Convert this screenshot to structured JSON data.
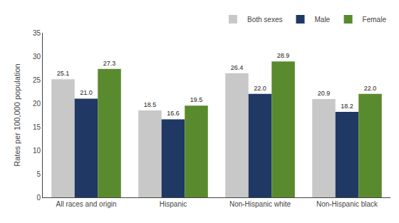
{
  "chart_data": {
    "type": "bar",
    "categories": [
      "All races and origin",
      "Hispanic",
      "Non-Hispanic white",
      "Non-Hispanic black"
    ],
    "series": [
      {
        "name": "Both sexes",
        "color": "#c8c8c8",
        "values": [
          25.1,
          18.5,
          26.4,
          20.9
        ],
        "value_labels": [
          "25.1",
          "18.5",
          "26.4",
          "20.9"
        ]
      },
      {
        "name": "Male",
        "color": "#1f3864",
        "values": [
          21.0,
          16.6,
          22.0,
          18.2
        ],
        "value_labels": [
          "21.0",
          "16.6",
          "22.0",
          "18.2"
        ]
      },
      {
        "name": "Female",
        "color": "#5a8a2e",
        "values": [
          27.3,
          19.5,
          28.9,
          22.0
        ],
        "value_labels": [
          "27.3",
          "19.5",
          "28.9",
          "22.0"
        ]
      }
    ],
    "ylabel": "Rates per 100,000 population",
    "ylim": [
      0,
      35
    ],
    "yticks": [
      0,
      5,
      10,
      15,
      20,
      25,
      30,
      35
    ],
    "grid": false,
    "legend": "upper right",
    "data_labels": true
  }
}
